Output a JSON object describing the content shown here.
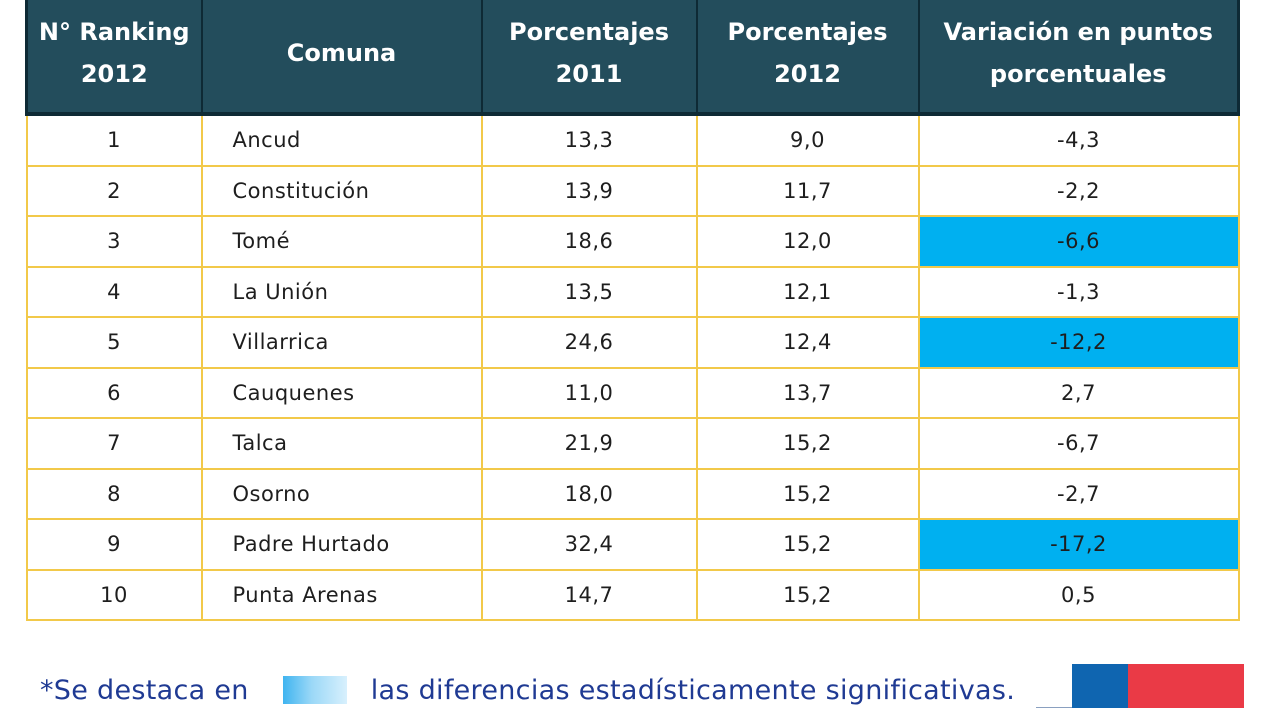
{
  "table": {
    "headers": [
      "N° Ranking\n2012",
      "Comuna",
      "Porcentajes\n2011",
      "Porcentajes\n2012",
      "Variación en puntos\nporcentuales"
    ],
    "rows": [
      {
        "rank": "1",
        "comuna": "Ancud",
        "p2011": "13,3",
        "p2012": "9,0",
        "variacion": "-4,3",
        "significativa": false
      },
      {
        "rank": "2",
        "comuna": "Constitución",
        "p2011": "13,9",
        "p2012": "11,7",
        "variacion": "-2,2",
        "significativa": false
      },
      {
        "rank": "3",
        "comuna": "Tomé",
        "p2011": "18,6",
        "p2012": "12,0",
        "variacion": "-6,6",
        "significativa": true
      },
      {
        "rank": "4",
        "comuna": "La Unión",
        "p2011": "13,5",
        "p2012": "12,1",
        "variacion": "-1,3",
        "significativa": false
      },
      {
        "rank": "5",
        "comuna": "Villarrica",
        "p2011": "24,6",
        "p2012": "12,4",
        "variacion": "-12,2",
        "significativa": true
      },
      {
        "rank": "6",
        "comuna": "Cauquenes",
        "p2011": "11,0",
        "p2012": "13,7",
        "variacion": "2,7",
        "significativa": false
      },
      {
        "rank": "7",
        "comuna": "Talca",
        "p2011": "21,9",
        "p2012": "15,2",
        "variacion": "-6,7",
        "significativa": false
      },
      {
        "rank": "8",
        "comuna": "Osorno",
        "p2011": "18,0",
        "p2012": "15,2",
        "variacion": "-2,7",
        "significativa": false
      },
      {
        "rank": "9",
        "comuna": "Padre Hurtado",
        "p2011": "32,4",
        "p2012": "15,2",
        "variacion": "-17,2",
        "significativa": true
      },
      {
        "rank": "10",
        "comuna": "Punta Arenas",
        "p2011": "14,7",
        "p2012": "15,2",
        "variacion": "0,5",
        "significativa": false
      }
    ]
  },
  "footnote": {
    "prefix": "*Se destaca en",
    "suffix": "las diferencias estadísticamente significativas."
  },
  "colors": {
    "header_bg": "#234d5c",
    "highlight": "#00b0f0",
    "grid": "#f2c94a",
    "footnote_text": "#1f3a93",
    "flag_blue": "#0f65b0",
    "flag_red": "#ea3a46"
  }
}
